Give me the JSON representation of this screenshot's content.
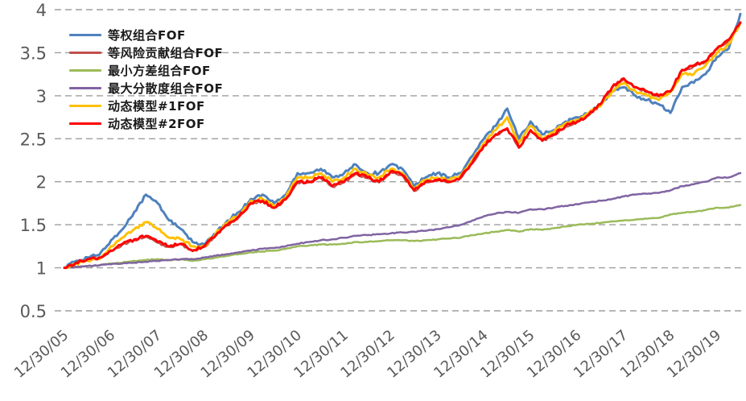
{
  "chart_data": {
    "type": "line",
    "title": "",
    "xlabel": "",
    "ylabel": "",
    "ylim": [
      0.5,
      4
    ],
    "y_ticks": [
      0.5,
      1,
      1.5,
      2,
      2.5,
      3,
      3.5,
      4
    ],
    "y_tick_labels": [
      "0.5",
      "1",
      "1.5",
      "2",
      "2.5",
      "3",
      "3.5",
      "4"
    ],
    "x_tick_labels": [
      "12/30/05",
      "12/30/06",
      "12/30/07",
      "12/30/08",
      "12/30/09",
      "12/30/10",
      "12/30/11",
      "12/30/12",
      "12/30/13",
      "12/30/14",
      "12/30/15",
      "12/30/16",
      "12/30/17",
      "12/30/18",
      "12/30/19"
    ],
    "x_note": "quarterly samples starting 2005-12-30; one x tick per 4 samples",
    "grid": "horizontal dashed gray lines, no solid axes",
    "legend_position": "top-left inside plot",
    "series": [
      {
        "name": "等权组合FOF",
        "color": "#4F81BD",
        "width": 3,
        "values": [
          1.0,
          1.08,
          1.12,
          1.15,
          1.32,
          1.45,
          1.65,
          1.85,
          1.75,
          1.55,
          1.45,
          1.3,
          1.27,
          1.4,
          1.55,
          1.65,
          1.8,
          1.85,
          1.75,
          1.85,
          2.1,
          2.1,
          2.15,
          2.05,
          2.1,
          2.2,
          2.1,
          2.1,
          2.2,
          2.15,
          1.95,
          2.05,
          2.1,
          2.05,
          2.1,
          2.3,
          2.5,
          2.65,
          2.85,
          2.5,
          2.7,
          2.55,
          2.6,
          2.7,
          2.75,
          2.8,
          2.9,
          3.05,
          3.1,
          3.0,
          2.95,
          2.9,
          2.8,
          3.1,
          3.15,
          3.25,
          3.45,
          3.55,
          3.95
        ]
      },
      {
        "name": "等风险贡献组合FOF",
        "color": "#C0504D",
        "width": 2,
        "values": [
          1.0,
          1.05,
          1.09,
          1.11,
          1.19,
          1.27,
          1.32,
          1.36,
          1.29,
          1.24,
          1.27,
          1.19,
          1.24,
          1.37,
          1.49,
          1.59,
          1.74,
          1.77,
          1.69,
          1.79,
          1.99,
          1.99,
          2.04,
          1.94,
          1.99,
          2.09,
          2.04,
          1.99,
          2.11,
          2.07,
          1.89,
          1.99,
          2.01,
          1.99,
          2.04,
          2.21,
          2.41,
          2.54,
          2.61,
          2.39,
          2.59,
          2.47,
          2.54,
          2.64,
          2.69,
          2.77,
          2.89,
          3.09,
          3.19,
          3.09,
          3.04,
          2.99,
          3.04,
          3.29,
          3.34,
          3.39,
          3.54,
          3.64,
          3.84
        ]
      },
      {
        "name": "最小方差组合FOF",
        "color": "#9BBB59",
        "width": 2.5,
        "values": [
          1.0,
          1.01,
          1.02,
          1.03,
          1.05,
          1.06,
          1.08,
          1.09,
          1.1,
          1.09,
          1.1,
          1.08,
          1.1,
          1.12,
          1.14,
          1.16,
          1.18,
          1.19,
          1.2,
          1.22,
          1.25,
          1.26,
          1.27,
          1.27,
          1.28,
          1.3,
          1.3,
          1.31,
          1.32,
          1.32,
          1.31,
          1.32,
          1.33,
          1.34,
          1.35,
          1.38,
          1.4,
          1.42,
          1.44,
          1.42,
          1.45,
          1.44,
          1.46,
          1.48,
          1.5,
          1.51,
          1.52,
          1.54,
          1.55,
          1.56,
          1.57,
          1.58,
          1.62,
          1.64,
          1.65,
          1.67,
          1.7,
          1.7,
          1.73
        ]
      },
      {
        "name": "最大分散度组合FOF",
        "color": "#8064A2",
        "width": 2.5,
        "values": [
          1.0,
          1.01,
          1.02,
          1.03,
          1.04,
          1.05,
          1.06,
          1.07,
          1.08,
          1.09,
          1.1,
          1.1,
          1.12,
          1.14,
          1.16,
          1.18,
          1.2,
          1.22,
          1.23,
          1.25,
          1.28,
          1.3,
          1.32,
          1.33,
          1.35,
          1.37,
          1.38,
          1.39,
          1.4,
          1.41,
          1.42,
          1.43,
          1.45,
          1.47,
          1.5,
          1.55,
          1.6,
          1.63,
          1.65,
          1.64,
          1.68,
          1.68,
          1.7,
          1.72,
          1.74,
          1.76,
          1.78,
          1.8,
          1.83,
          1.85,
          1.86,
          1.87,
          1.9,
          1.95,
          1.97,
          2.0,
          2.05,
          2.05,
          2.1
        ]
      },
      {
        "name": "动态模型#1FOF",
        "color": "#FFC000",
        "width": 3,
        "values": [
          1.0,
          1.05,
          1.08,
          1.1,
          1.25,
          1.35,
          1.45,
          1.53,
          1.45,
          1.35,
          1.33,
          1.25,
          1.25,
          1.4,
          1.52,
          1.62,
          1.78,
          1.8,
          1.72,
          1.82,
          2.05,
          2.05,
          2.1,
          2.0,
          2.05,
          2.15,
          2.08,
          2.05,
          2.15,
          2.1,
          1.92,
          2.02,
          2.05,
          2.02,
          2.08,
          2.25,
          2.45,
          2.6,
          2.75,
          2.45,
          2.65,
          2.5,
          2.58,
          2.68,
          2.72,
          2.8,
          2.88,
          3.05,
          3.15,
          3.05,
          3.0,
          2.95,
          3.05,
          3.25,
          3.25,
          3.35,
          3.5,
          3.6,
          3.85
        ]
      },
      {
        "name": "动态模型#2FOF",
        "color": "#FF0000",
        "width": 3,
        "values": [
          1.0,
          1.06,
          1.1,
          1.12,
          1.2,
          1.28,
          1.33,
          1.37,
          1.3,
          1.25,
          1.28,
          1.2,
          1.25,
          1.38,
          1.5,
          1.6,
          1.75,
          1.78,
          1.7,
          1.8,
          2.0,
          2.0,
          2.05,
          1.95,
          2.0,
          2.1,
          2.05,
          2.0,
          2.12,
          2.08,
          1.9,
          2.0,
          2.02,
          2.0,
          2.05,
          2.22,
          2.42,
          2.55,
          2.62,
          2.4,
          2.6,
          2.48,
          2.55,
          2.65,
          2.7,
          2.78,
          2.9,
          3.1,
          3.2,
          3.1,
          3.05,
          3.0,
          3.05,
          3.3,
          3.35,
          3.4,
          3.55,
          3.65,
          3.85
        ]
      }
    ]
  }
}
